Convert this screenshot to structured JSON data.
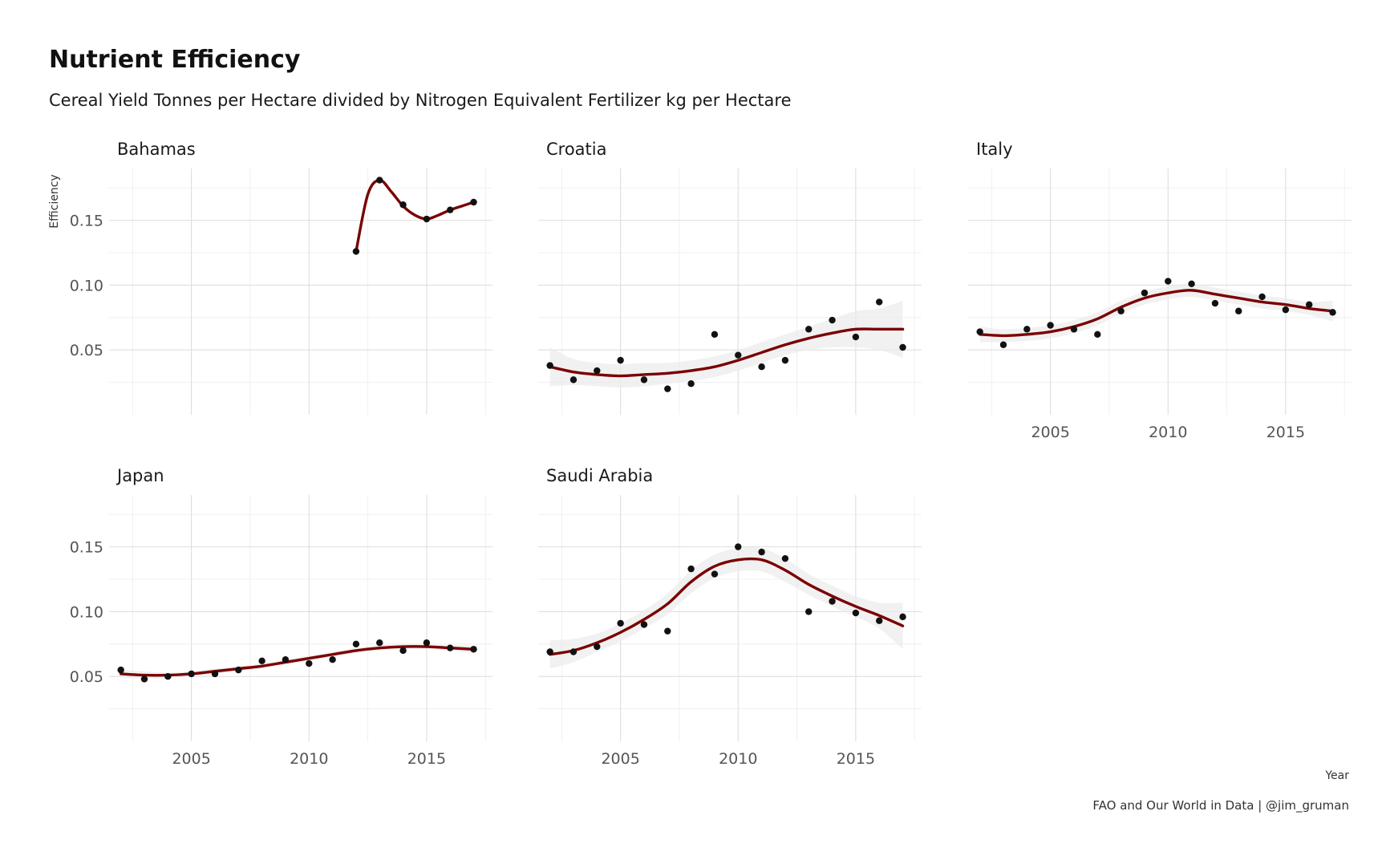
{
  "chart_data": {
    "type": "scatter",
    "title": "Nutrient Efficiency",
    "subtitle": "Cereal Yield Tonnes per Hectare divided by Nitrogen Equivalent Fertilizer kg per Hectare",
    "xlabel": "Year",
    "ylabel": "Efficiency",
    "caption": "FAO and Our World in Data | @jim_gruman",
    "xlim": [
      2001.5,
      2017.8
    ],
    "ylim": [
      0.0,
      0.19
    ],
    "x_ticks": [
      2005,
      2010,
      2015
    ],
    "x_tick_labels": [
      "2005",
      "2010",
      "2015"
    ],
    "y_ticks": [
      0.05,
      0.1,
      0.15
    ],
    "y_tick_labels": [
      "0.05",
      "0.10",
      "0.15"
    ],
    "grid": true,
    "colors": {
      "smooth_line": "#7a0000",
      "points": "#111111",
      "band": "#ebebeb"
    },
    "panels": [
      {
        "name": "Bahamas",
        "x": [
          2012,
          2013,
          2014,
          2015,
          2016,
          2017
        ],
        "y": [
          0.126,
          0.181,
          0.162,
          0.151,
          0.158,
          0.164
        ],
        "smooth_x": [
          2012,
          2012.5,
          2013,
          2013.5,
          2014,
          2014.5,
          2015,
          2015.5,
          2016,
          2016.5,
          2017
        ],
        "smooth_y": [
          0.126,
          0.17,
          0.181,
          0.172,
          0.161,
          0.154,
          0.151,
          0.154,
          0.158,
          0.161,
          0.164
        ],
        "band_lo": [],
        "band_hi": []
      },
      {
        "name": "Croatia",
        "x": [
          2002,
          2003,
          2004,
          2005,
          2006,
          2007,
          2008,
          2009,
          2010,
          2011,
          2012,
          2013,
          2014,
          2015,
          2016,
          2017
        ],
        "y": [
          0.038,
          0.027,
          0.034,
          0.042,
          0.027,
          0.02,
          0.024,
          0.062,
          0.046,
          0.037,
          0.042,
          0.066,
          0.073,
          0.06,
          0.087,
          0.052
        ],
        "smooth_x": [
          2002,
          2003,
          2004,
          2005,
          2006,
          2007,
          2008,
          2009,
          2010,
          2011,
          2012,
          2013,
          2014,
          2015,
          2016,
          2017
        ],
        "smooth_y": [
          0.037,
          0.033,
          0.031,
          0.03,
          0.031,
          0.032,
          0.034,
          0.037,
          0.042,
          0.048,
          0.054,
          0.059,
          0.063,
          0.066,
          0.066,
          0.066
        ],
        "band_lo": [
          0.022,
          0.023,
          0.022,
          0.021,
          0.022,
          0.024,
          0.026,
          0.029,
          0.034,
          0.04,
          0.046,
          0.05,
          0.052,
          0.052,
          0.05,
          0.044
        ],
        "band_hi": [
          0.052,
          0.043,
          0.04,
          0.039,
          0.04,
          0.04,
          0.042,
          0.045,
          0.05,
          0.056,
          0.062,
          0.068,
          0.074,
          0.08,
          0.082,
          0.088
        ]
      },
      {
        "name": "Italy",
        "x": [
          2002,
          2003,
          2004,
          2005,
          2006,
          2007,
          2008,
          2009,
          2010,
          2011,
          2012,
          2013,
          2014,
          2015,
          2016,
          2017
        ],
        "y": [
          0.064,
          0.054,
          0.066,
          0.069,
          0.066,
          0.062,
          0.08,
          0.094,
          0.103,
          0.101,
          0.086,
          0.08,
          0.091,
          0.081,
          0.085,
          0.079
        ],
        "smooth_x": [
          2002,
          2003,
          2004,
          2005,
          2006,
          2007,
          2008,
          2009,
          2010,
          2011,
          2012,
          2013,
          2014,
          2015,
          2016,
          2017
        ],
        "smooth_y": [
          0.062,
          0.061,
          0.062,
          0.064,
          0.068,
          0.074,
          0.083,
          0.09,
          0.094,
          0.096,
          0.093,
          0.09,
          0.087,
          0.085,
          0.082,
          0.08
        ],
        "band_lo": [
          0.056,
          0.056,
          0.057,
          0.059,
          0.063,
          0.069,
          0.078,
          0.085,
          0.089,
          0.091,
          0.088,
          0.085,
          0.082,
          0.08,
          0.077,
          0.072
        ],
        "band_hi": [
          0.068,
          0.066,
          0.067,
          0.069,
          0.073,
          0.079,
          0.088,
          0.095,
          0.099,
          0.101,
          0.098,
          0.095,
          0.092,
          0.09,
          0.087,
          0.088
        ]
      },
      {
        "name": "Japan",
        "x": [
          2002,
          2003,
          2004,
          2005,
          2006,
          2007,
          2008,
          2009,
          2010,
          2011,
          2012,
          2013,
          2014,
          2015,
          2016,
          2017
        ],
        "y": [
          0.055,
          0.048,
          0.05,
          0.052,
          0.052,
          0.055,
          0.062,
          0.063,
          0.06,
          0.063,
          0.075,
          0.076,
          0.07,
          0.076,
          0.072,
          0.071
        ],
        "smooth_x": [
          2002,
          2003,
          2004,
          2005,
          2006,
          2007,
          2008,
          2009,
          2010,
          2011,
          2012,
          2013,
          2014,
          2015,
          2016,
          2017
        ],
        "smooth_y": [
          0.052,
          0.051,
          0.051,
          0.052,
          0.054,
          0.056,
          0.058,
          0.061,
          0.064,
          0.067,
          0.07,
          0.072,
          0.073,
          0.073,
          0.072,
          0.071
        ],
        "band_lo": [
          0.049,
          0.048,
          0.049,
          0.05,
          0.052,
          0.054,
          0.056,
          0.059,
          0.062,
          0.065,
          0.068,
          0.07,
          0.071,
          0.071,
          0.07,
          0.068
        ],
        "band_hi": [
          0.055,
          0.054,
          0.053,
          0.054,
          0.056,
          0.058,
          0.06,
          0.063,
          0.066,
          0.069,
          0.072,
          0.074,
          0.075,
          0.075,
          0.074,
          0.074
        ]
      },
      {
        "name": "Saudi Arabia",
        "x": [
          2002,
          2003,
          2004,
          2005,
          2006,
          2007,
          2008,
          2009,
          2010,
          2011,
          2012,
          2013,
          2014,
          2015,
          2016,
          2017
        ],
        "y": [
          0.069,
          0.069,
          0.073,
          0.091,
          0.09,
          0.085,
          0.133,
          0.129,
          0.15,
          0.146,
          0.141,
          0.1,
          0.108,
          0.099,
          0.093,
          0.096
        ],
        "smooth_x": [
          2002,
          2003,
          2004,
          2005,
          2006,
          2007,
          2008,
          2009,
          2010,
          2011,
          2012,
          2013,
          2014,
          2015,
          2016,
          2017
        ],
        "smooth_y": [
          0.067,
          0.07,
          0.076,
          0.084,
          0.094,
          0.106,
          0.123,
          0.135,
          0.14,
          0.14,
          0.132,
          0.121,
          0.112,
          0.104,
          0.097,
          0.089
        ],
        "band_lo": [
          0.056,
          0.061,
          0.069,
          0.077,
          0.087,
          0.098,
          0.114,
          0.126,
          0.131,
          0.131,
          0.123,
          0.113,
          0.104,
          0.096,
          0.087,
          0.071
        ],
        "band_hi": [
          0.078,
          0.079,
          0.083,
          0.091,
          0.101,
          0.114,
          0.132,
          0.144,
          0.149,
          0.149,
          0.141,
          0.129,
          0.12,
          0.112,
          0.107,
          0.107
        ]
      }
    ]
  }
}
